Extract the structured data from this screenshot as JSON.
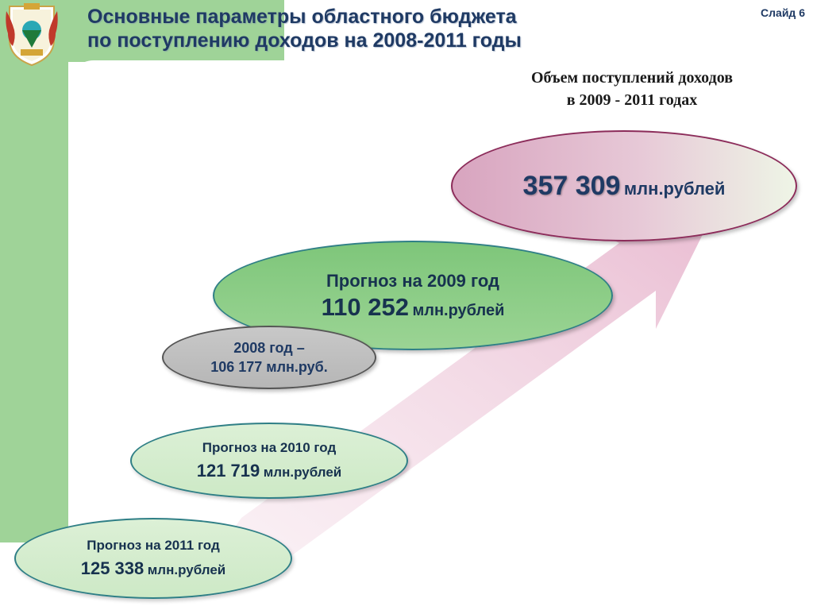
{
  "header": {
    "title_line1": "Основные параметры областного бюджета",
    "title_line2": "по поступлению доходов на 2008-2011 годы",
    "slide_number": "Слайд 6"
  },
  "subtitle": {
    "line1": "Объем поступлений доходов",
    "line2": "в 2009 - 2011 годах"
  },
  "colors": {
    "accent_green": "#9fd398",
    "title_blue": "#1f3a64",
    "total_border": "#8c2c5a",
    "arrow_pink": "#f0d0e0"
  },
  "icons": {
    "coat_of_arms": "coat-of-arms-icon"
  },
  "total": {
    "value": "357 309",
    "unit": "млн.рублей"
  },
  "items": [
    {
      "id": "2009",
      "label": "Прогноз на 2009 год",
      "value": "110 252",
      "unit": "млн.рублей"
    },
    {
      "id": "2008",
      "line1": "2008 год –",
      "line2": "106 177 млн.руб."
    },
    {
      "id": "2010",
      "label": "Прогноз на 2010 год",
      "value": "121 719",
      "unit": "млн.рублей"
    },
    {
      "id": "2011",
      "label": "Прогноз на 2011 год",
      "value": "125 338",
      "unit": "млн.рублей"
    }
  ]
}
